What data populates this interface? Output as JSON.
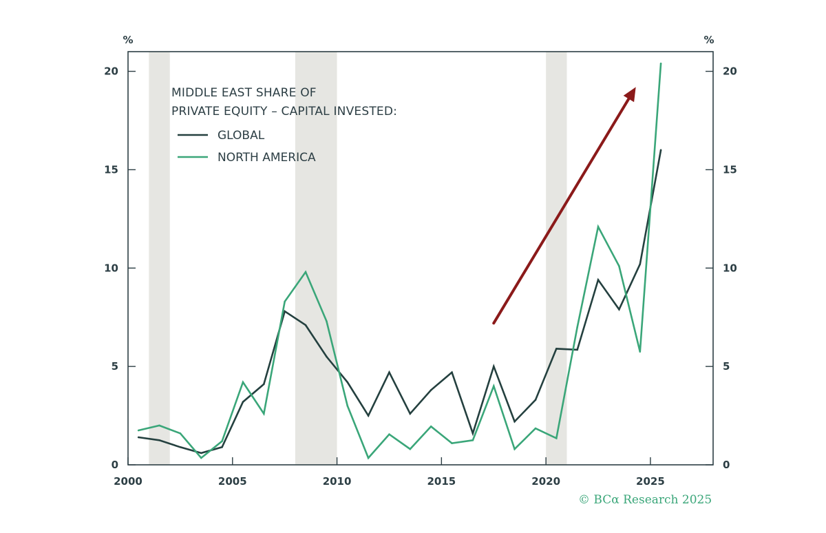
{
  "credit": "© BCα Research 2025",
  "chart_data": {
    "type": "line",
    "title": "MIDDLE EAST SHARE OF PRIVATE EQUITY – CAPITAL INVESTED:",
    "title_lines": [
      "MIDDLE EAST SHARE OF",
      "PRIVATE EQUITY – CAPITAL INVESTED:"
    ],
    "y_unit_left": "%",
    "y_unit_right": "%",
    "xlim": [
      2000,
      2028
    ],
    "ylim": [
      0,
      21
    ],
    "x_ticks": [
      2000,
      2005,
      2010,
      2015,
      2020,
      2025
    ],
    "y_ticks": [
      0,
      5,
      10,
      15,
      20
    ],
    "grid": false,
    "legend_position": "top-left",
    "shaded_periods": [
      [
        2001.0,
        2002.0
      ],
      [
        2008.0,
        2010.0
      ],
      [
        2020.0,
        2021.0
      ]
    ],
    "series": [
      {
        "name": "GLOBAL",
        "color": "#24403f",
        "x": [
          2000.5,
          2001.5,
          2002.5,
          2003.5,
          2004.5,
          2005.5,
          2006.5,
          2007.5,
          2008.5,
          2009.5,
          2010.5,
          2011.5,
          2012.5,
          2013.5,
          2014.5,
          2015.5,
          2016.5,
          2017.5,
          2018.5,
          2019.5,
          2020.5,
          2021.5,
          2022.5,
          2023.5,
          2024.5,
          2025.5
        ],
        "values": [
          1.4,
          1.25,
          0.9,
          0.6,
          0.9,
          3.2,
          4.1,
          7.8,
          7.1,
          5.5,
          4.2,
          2.5,
          4.7,
          2.6,
          3.8,
          4.7,
          1.6,
          5.0,
          2.2,
          3.3,
          5.9,
          5.85,
          9.4,
          7.9,
          10.2,
          16.0
        ]
      },
      {
        "name": "NORTH AMERICA",
        "color": "#3aa679",
        "x": [
          2000.5,
          2001.5,
          2002.5,
          2003.5,
          2004.5,
          2005.5,
          2006.5,
          2007.5,
          2008.5,
          2009.5,
          2010.5,
          2011.5,
          2012.5,
          2013.5,
          2014.5,
          2015.5,
          2016.5,
          2017.5,
          2018.5,
          2019.5,
          2020.5,
          2021.5,
          2022.5,
          2023.5,
          2024.5,
          2025.5
        ],
        "values": [
          1.75,
          2.0,
          1.6,
          0.35,
          1.2,
          4.2,
          2.6,
          8.3,
          9.8,
          7.3,
          3.0,
          0.35,
          1.55,
          0.8,
          1.95,
          1.1,
          1.25,
          4.0,
          0.8,
          1.85,
          1.35,
          7.0,
          12.1,
          10.1,
          5.75,
          20.4
        ]
      }
    ],
    "annotations": [
      {
        "type": "arrow",
        "color": "#8b1a1a",
        "from": [
          2017.5,
          7.2
        ],
        "to": [
          2024.3,
          19.2
        ]
      }
    ]
  }
}
